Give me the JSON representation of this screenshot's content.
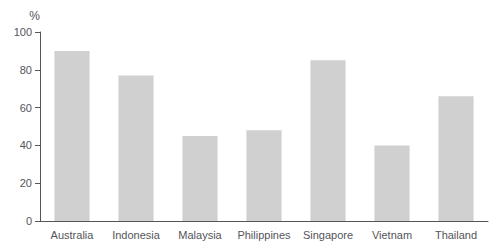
{
  "chart_data": {
    "type": "bar",
    "ylabel": "%",
    "categories": [
      "Australia",
      "Indonesia",
      "Malaysia",
      "Philippines",
      "Singapore",
      "Vietnam",
      "Thailand"
    ],
    "values": [
      90,
      77,
      45,
      48,
      85,
      40,
      66
    ],
    "color": "#d0d0d0",
    "ylim": [
      0,
      100
    ],
    "yticks": [
      0,
      20,
      40,
      60,
      80,
      100
    ],
    "grid": false
  }
}
